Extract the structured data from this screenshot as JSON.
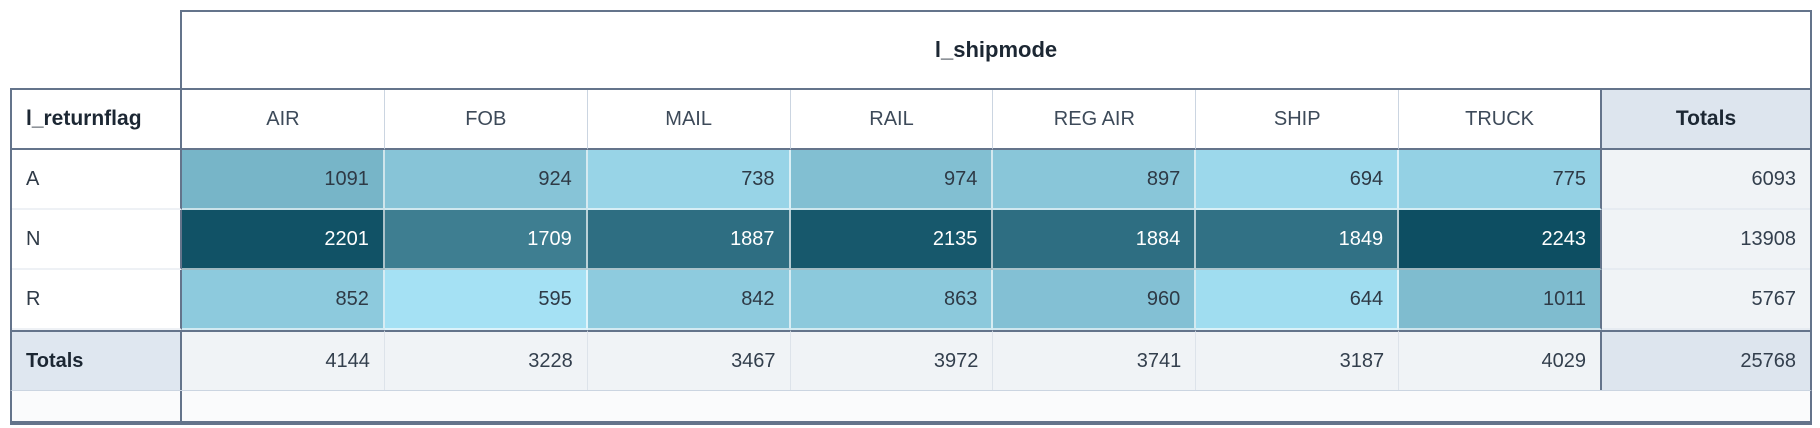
{
  "labels": {
    "totals": "Totals"
  },
  "chart_data": {
    "type": "heatmap",
    "x_dimension": "l_shipmode",
    "y_dimension": "l_returnflag",
    "x_categories": [
      "AIR",
      "FOB",
      "MAIL",
      "RAIL",
      "REG AIR",
      "SHIP",
      "TRUCK"
    ],
    "y_categories": [
      "A",
      "N",
      "R"
    ],
    "values": [
      [
        1091,
        924,
        738,
        974,
        897,
        694,
        775
      ],
      [
        2201,
        1709,
        1887,
        2135,
        1884,
        1849,
        2243
      ],
      [
        852,
        595,
        842,
        863,
        960,
        644,
        1011
      ]
    ],
    "row_totals": [
      6093,
      13908,
      5767
    ],
    "column_totals": [
      4144,
      3228,
      3467,
      3972,
      3741,
      3187,
      4029
    ],
    "grand_total": 25768,
    "value_domain": [
      595,
      2243
    ],
    "color_range": [
      "#a5e1f4",
      "#0d4e62"
    ],
    "colors": {
      "border_dark": "#64748b",
      "totals_header_bg": "#dde5ee",
      "totals_cell_bg": "#f0f3f6",
      "light_text": "#2e3a46",
      "dark_text": "#ffffff"
    }
  }
}
